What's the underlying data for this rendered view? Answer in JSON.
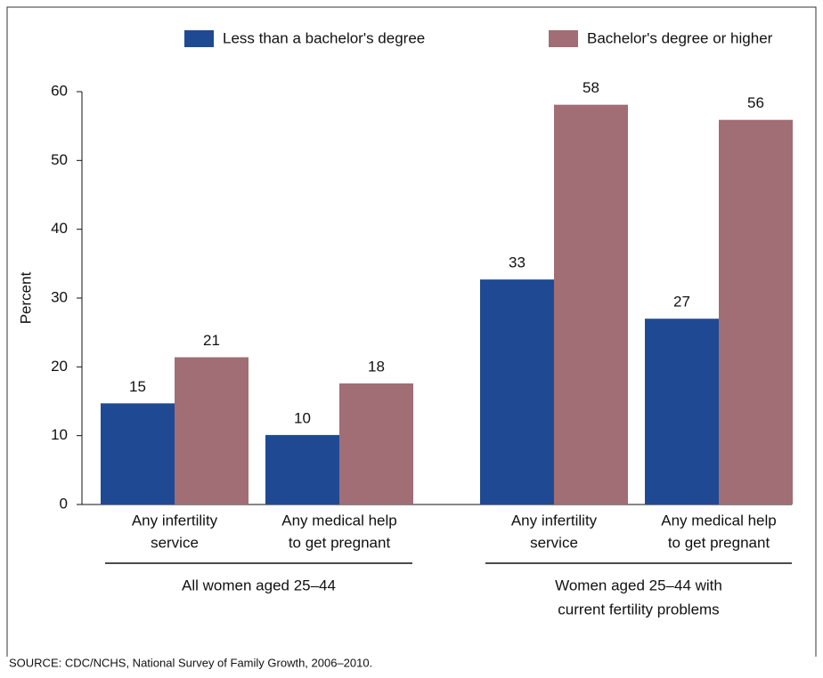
{
  "chart_data": {
    "type": "bar",
    "categories": [
      [
        "Any infertility",
        "service"
      ],
      [
        "Any medical help",
        "to get pregnant"
      ],
      [
        "Any infertility",
        "service"
      ],
      [
        "Any medical help",
        "to get pregnant"
      ]
    ],
    "groups": [
      {
        "label": [
          "All women aged 25–44"
        ]
      },
      {
        "label": [
          "Women aged 25–44 with",
          "current fertility problems"
        ]
      }
    ],
    "series": [
      {
        "name": "Less than a bachelor's degree",
        "color": "#1f4a93",
        "values": [
          14.7,
          10.1,
          32.7,
          27.0
        ],
        "value_labels": [
          "15",
          "10",
          "33",
          "27"
        ]
      },
      {
        "name": "Bachelor's degree or higher",
        "color": "#a06e74",
        "values": [
          21.4,
          17.6,
          58.1,
          55.9
        ],
        "value_labels": [
          "21",
          "18",
          "58",
          "56"
        ]
      }
    ],
    "ylabel": "Percent",
    "ylim": [
      0,
      60
    ],
    "yticks": [
      0,
      10,
      20,
      30,
      40,
      50,
      60
    ],
    "legend": "top",
    "source": "SOURCE: CDC/NCHS, National Survey of Family Growth, 2006–2010."
  }
}
